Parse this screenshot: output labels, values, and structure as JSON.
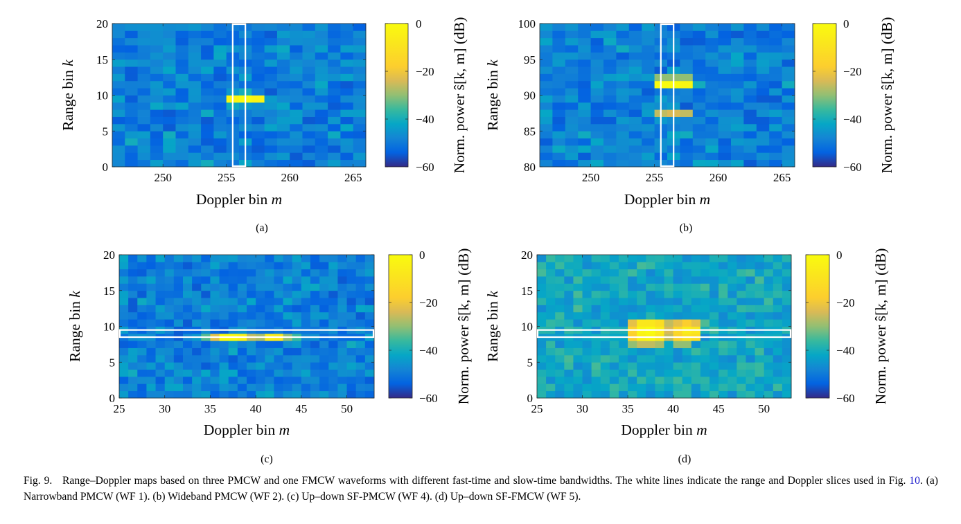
{
  "figure": {
    "caption_label": "Fig. 9.",
    "caption_pre": "Range–Doppler maps based on three PMCW and one FMCW waveforms with different fast-time and slow-time bandwidths. The white lines indicate the range and Doppler slices used in Fig.",
    "caption_ref": "10",
    "caption_post": ". (a) Narrowband PMCW (WF 1). (b) Wideband PMCW (WF 2). (c) Up–down SF-PMCW (WF 4). (d) Up–down SF-FMCW (WF 5)."
  },
  "colorbar": {
    "label": "Norm. power ŝ[k, m] (dB)",
    "ticks": [
      0,
      -20,
      -40,
      -60
    ],
    "range": [
      -60,
      0
    ]
  },
  "chart_data": [
    {
      "type": "heatmap",
      "panel": "(a)",
      "title": "",
      "xlabel": "Doppler bin m",
      "ylabel": "Range bin k",
      "xlim": [
        246,
        266
      ],
      "ylim": [
        0,
        20
      ],
      "xticks": [
        250,
        255,
        260,
        265
      ],
      "yticks": [
        0,
        5,
        10,
        15,
        20
      ],
      "background_db": [
        -60,
        -40
      ],
      "peaks": [
        {
          "m": 255,
          "k": 9,
          "db": -2
        },
        {
          "m": 256,
          "k": 9,
          "db": 0
        },
        {
          "m": 257,
          "k": 9,
          "db": -3
        }
      ],
      "slice": {
        "orientation": "vertical",
        "from": 255.5,
        "to": 256.5
      }
    },
    {
      "type": "heatmap",
      "panel": "(b)",
      "title": "",
      "xlabel": "Doppler bin m",
      "ylabel": "Range bin k",
      "xlim": [
        246,
        266
      ],
      "ylim": [
        80,
        100
      ],
      "xticks": [
        250,
        255,
        260,
        265
      ],
      "yticks": [
        80,
        85,
        90,
        95,
        100
      ],
      "background_db": [
        -60,
        -40
      ],
      "peaks": [
        {
          "m": 255,
          "k": 92,
          "db": -30
        },
        {
          "m": 256,
          "k": 92,
          "db": -30
        },
        {
          "m": 257,
          "k": 92,
          "db": -30
        },
        {
          "m": 255,
          "k": 91,
          "db": 0
        },
        {
          "m": 256,
          "k": 91,
          "db": 0
        },
        {
          "m": 257,
          "k": 91,
          "db": -2
        },
        {
          "m": 255,
          "k": 87,
          "db": -26
        },
        {
          "m": 256,
          "k": 87,
          "db": -24
        },
        {
          "m": 257,
          "k": 87,
          "db": -26
        }
      ],
      "slice": {
        "orientation": "vertical",
        "from": 255.5,
        "to": 256.5
      }
    },
    {
      "type": "heatmap",
      "panel": "(c)",
      "title": "",
      "xlabel": "Doppler bin m",
      "ylabel": "Range bin k",
      "xlim": [
        25,
        53
      ],
      "ylim": [
        0,
        20
      ],
      "xticks": [
        25,
        30,
        35,
        40,
        45,
        50
      ],
      "yticks": [
        0,
        5,
        10,
        15,
        20
      ],
      "background_db": [
        -60,
        -40
      ],
      "peaks": [
        {
          "m": 34,
          "k": 8,
          "db": -34
        },
        {
          "m": 35,
          "k": 8,
          "db": -22
        },
        {
          "m": 36,
          "k": 8,
          "db": 0
        },
        {
          "m": 37,
          "k": 8,
          "db": -1
        },
        {
          "m": 38,
          "k": 8,
          "db": -4
        },
        {
          "m": 39,
          "k": 8,
          "db": -26
        },
        {
          "m": 40,
          "k": 8,
          "db": -28
        },
        {
          "m": 41,
          "k": 8,
          "db": -6
        },
        {
          "m": 42,
          "k": 8,
          "db": -8
        },
        {
          "m": 43,
          "k": 8,
          "db": -30
        },
        {
          "m": 44,
          "k": 8,
          "db": -36
        }
      ],
      "slice": {
        "orientation": "horizontal",
        "from": 8.5,
        "to": 9.5
      }
    },
    {
      "type": "heatmap",
      "panel": "(d)",
      "title": "",
      "xlabel": "Doppler bin m",
      "ylabel": "Range bin k",
      "xlim": [
        25,
        53
      ],
      "ylim": [
        0,
        20
      ],
      "xticks": [
        25,
        30,
        35,
        40,
        45,
        50
      ],
      "yticks": [
        0,
        5,
        10,
        15,
        20
      ],
      "background_db": [
        -52,
        -34
      ],
      "peaks": [
        {
          "m": 35,
          "k": 10,
          "db": -22
        },
        {
          "m": 36,
          "k": 10,
          "db": -8
        },
        {
          "m": 37,
          "k": 10,
          "db": -8
        },
        {
          "m": 38,
          "k": 10,
          "db": -12
        },
        {
          "m": 39,
          "k": 10,
          "db": -26
        },
        {
          "m": 40,
          "k": 10,
          "db": -22
        },
        {
          "m": 41,
          "k": 10,
          "db": -18
        },
        {
          "m": 42,
          "k": 10,
          "db": -22
        },
        {
          "m": 35,
          "k": 9,
          "db": -16
        },
        {
          "m": 36,
          "k": 9,
          "db": -2
        },
        {
          "m": 37,
          "k": 9,
          "db": 0
        },
        {
          "m": 38,
          "k": 9,
          "db": -6
        },
        {
          "m": 39,
          "k": 9,
          "db": -24
        },
        {
          "m": 40,
          "k": 9,
          "db": -14
        },
        {
          "m": 41,
          "k": 9,
          "db": -6
        },
        {
          "m": 42,
          "k": 9,
          "db": -8
        },
        {
          "m": 35,
          "k": 8,
          "db": -18
        },
        {
          "m": 36,
          "k": 8,
          "db": -4
        },
        {
          "m": 37,
          "k": 8,
          "db": -2
        },
        {
          "m": 38,
          "k": 8,
          "db": -8
        },
        {
          "m": 39,
          "k": 8,
          "db": -26
        },
        {
          "m": 40,
          "k": 8,
          "db": -16
        },
        {
          "m": 41,
          "k": 8,
          "db": -10
        },
        {
          "m": 42,
          "k": 8,
          "db": -12
        },
        {
          "m": 35,
          "k": 7,
          "db": -30
        },
        {
          "m": 36,
          "k": 7,
          "db": -26
        },
        {
          "m": 37,
          "k": 7,
          "db": -26
        },
        {
          "m": 38,
          "k": 7,
          "db": -28
        },
        {
          "m": 40,
          "k": 7,
          "db": -30
        },
        {
          "m": 41,
          "k": 7,
          "db": -30
        }
      ],
      "slice": {
        "orientation": "horizontal",
        "from": 8.5,
        "to": 9.5
      }
    }
  ]
}
